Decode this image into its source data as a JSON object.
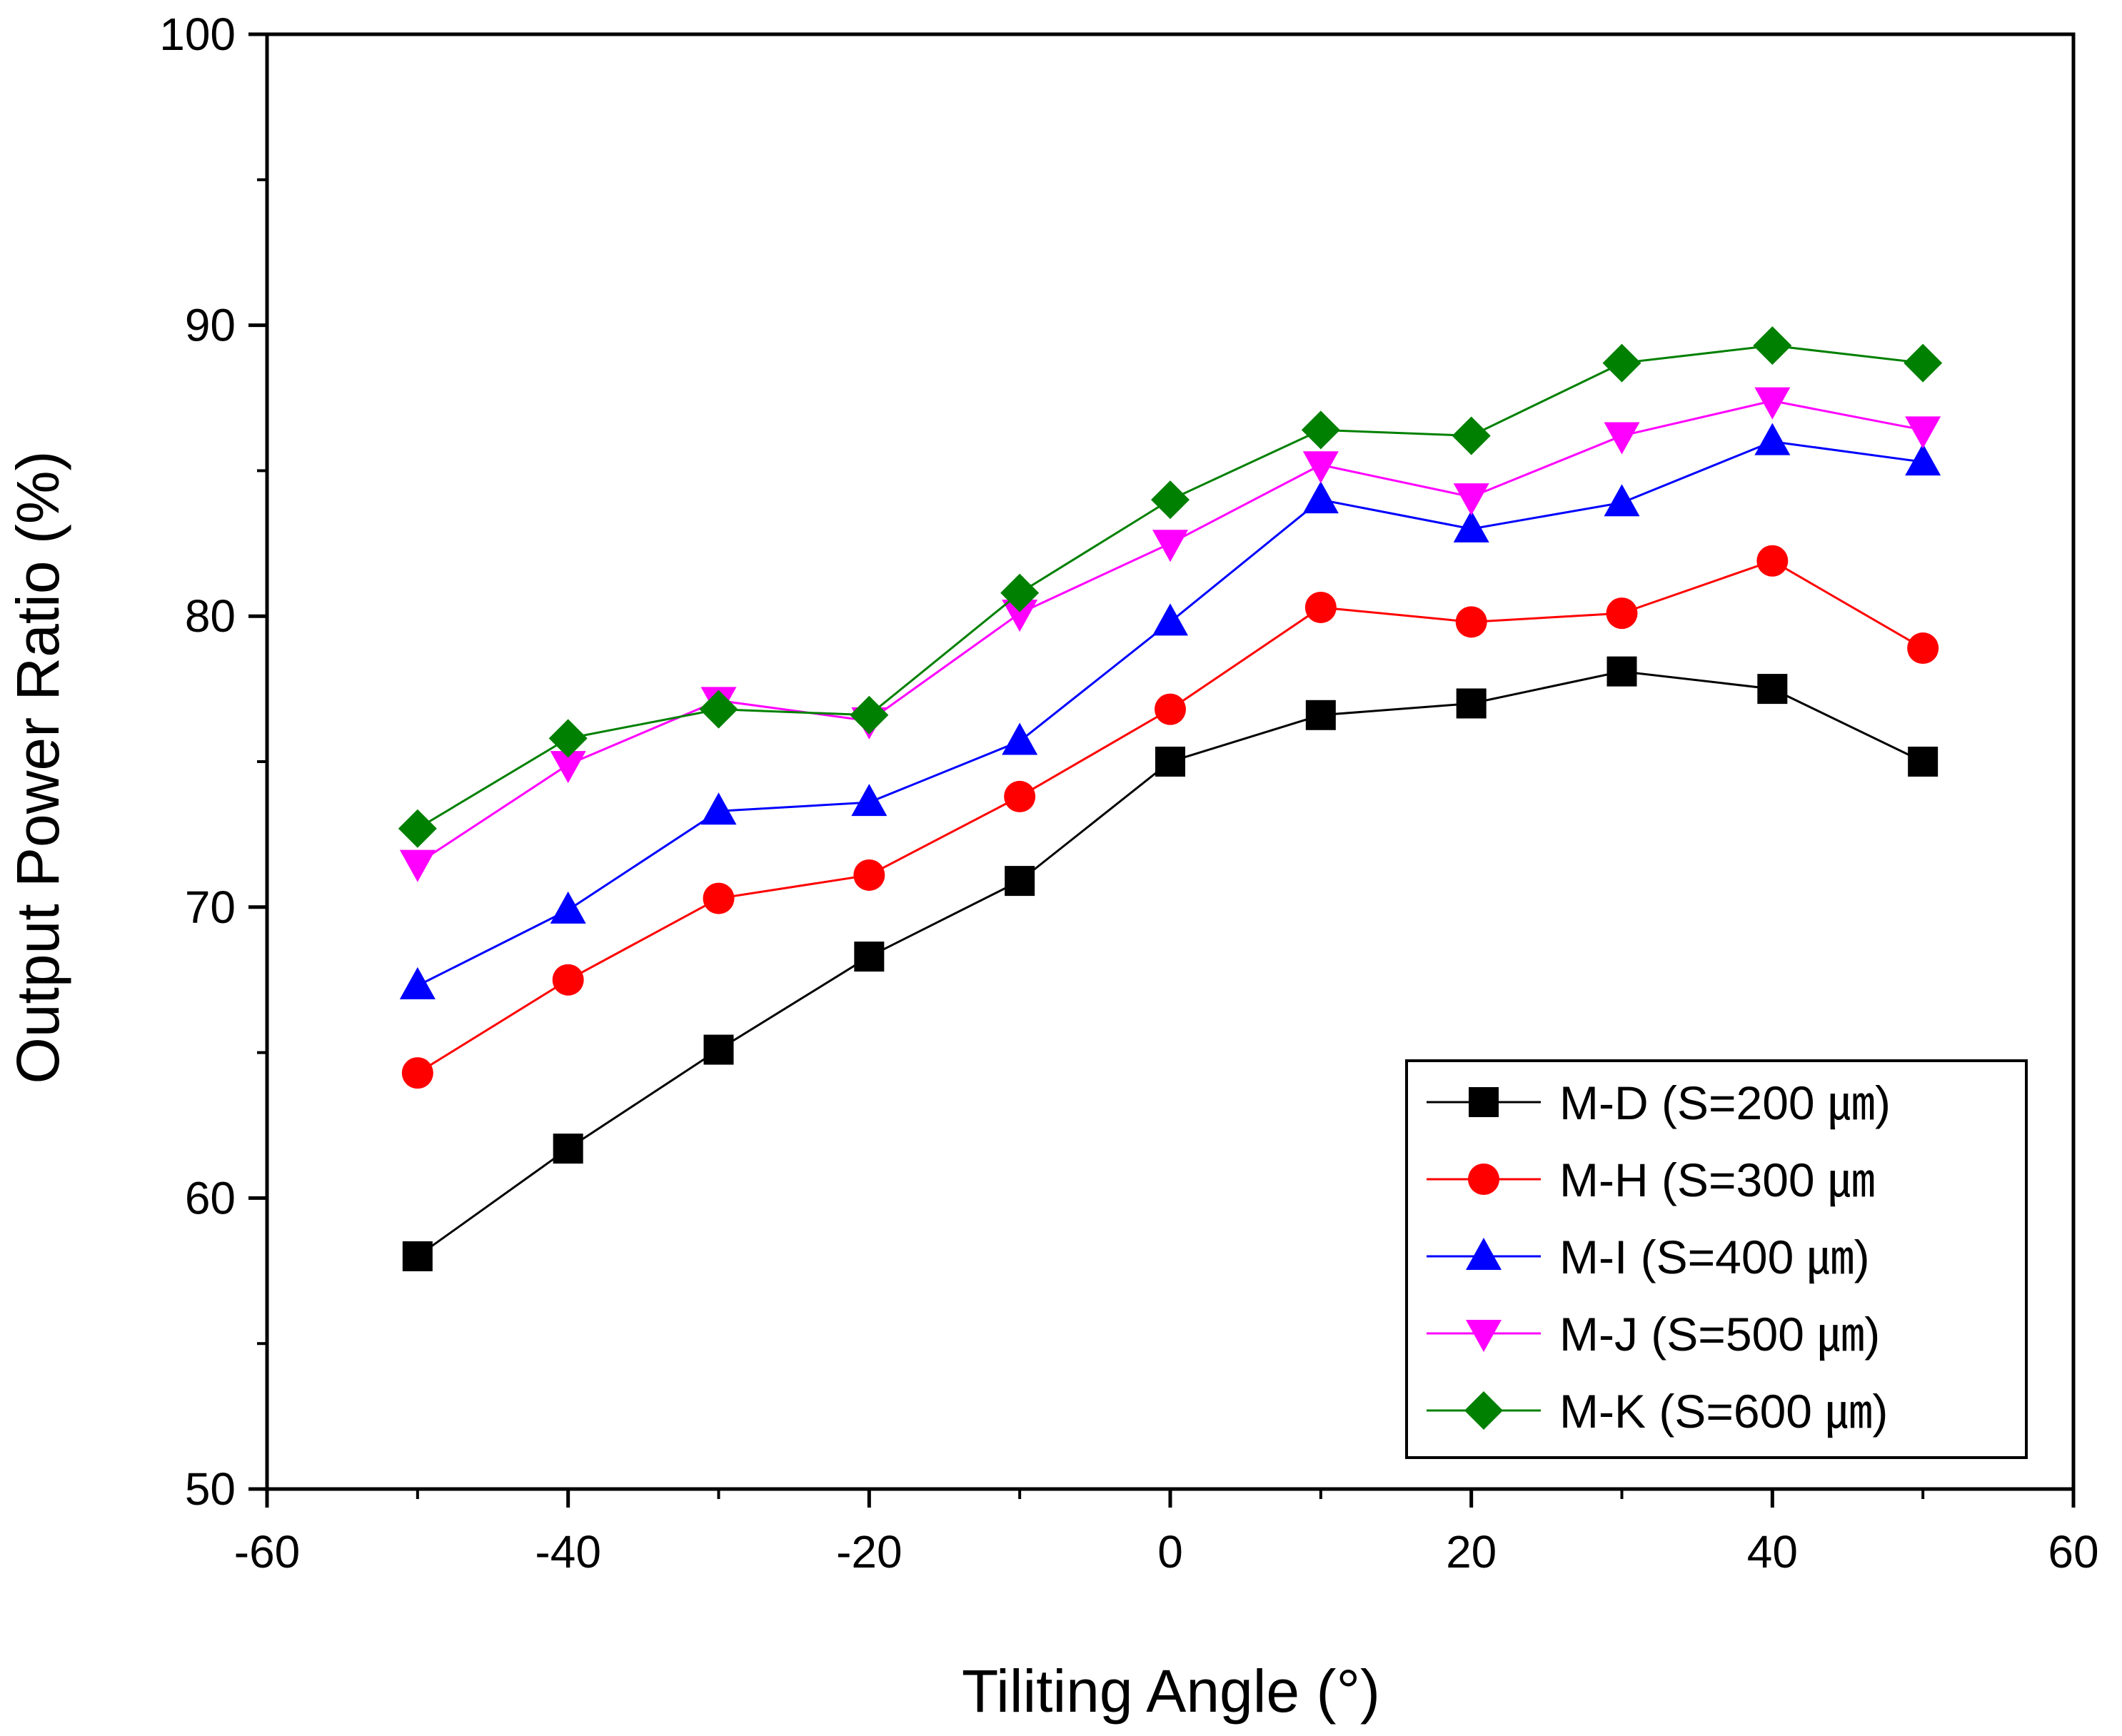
{
  "chart_data": {
    "type": "line",
    "xlabel": "Tiliting Angle (°)",
    "ylabel": "Output Power Ratio (%)",
    "xlim": [
      -60,
      60
    ],
    "ylim": [
      50,
      100
    ],
    "x_ticks": [
      -60,
      -40,
      -20,
      0,
      20,
      40,
      60
    ],
    "y_ticks": [
      50,
      60,
      70,
      80,
      90,
      100
    ],
    "x_tick_labels": [
      "-60",
      "-40",
      "-20",
      "0",
      "20",
      "40",
      "60"
    ],
    "y_tick_labels": [
      "50",
      "60",
      "70",
      "80",
      "90",
      "100"
    ],
    "grid": false,
    "legend_position": "bottom-right",
    "x": [
      -50,
      -40,
      -30,
      -20,
      -10,
      0,
      10,
      20,
      30,
      40,
      50
    ],
    "series": [
      {
        "name": "M-D (S=200 ㎛)",
        "color": "#000000",
        "marker": "square",
        "values": [
          58.0,
          61.7,
          65.1,
          68.3,
          70.9,
          75.0,
          76.6,
          77.0,
          78.1,
          77.5,
          75.0
        ]
      },
      {
        "name": "M-H (S=300 ㎛",
        "color": "#ff0000",
        "marker": "circle",
        "values": [
          64.3,
          67.5,
          70.3,
          71.1,
          73.8,
          76.8,
          80.3,
          79.8,
          80.1,
          81.9,
          78.9
        ]
      },
      {
        "name": "M-I (S=400 ㎛)",
        "color": "#0000ff",
        "marker": "triangle-up",
        "values": [
          67.3,
          69.9,
          73.3,
          73.6,
          75.7,
          79.8,
          84.0,
          83.0,
          83.9,
          86.0,
          85.3
        ]
      },
      {
        "name": "M-J (S=500 ㎛)",
        "color": "#ff00ff",
        "marker": "triangle-down",
        "values": [
          71.5,
          74.9,
          77.1,
          76.4,
          80.1,
          82.5,
          85.2,
          84.1,
          86.2,
          87.4,
          86.4
        ]
      },
      {
        "name": "M-K (S=600 ㎛)",
        "color": "#008000",
        "marker": "diamond",
        "values": [
          72.7,
          75.8,
          76.8,
          76.6,
          80.8,
          84.0,
          86.4,
          86.2,
          88.7,
          89.3,
          88.7
        ]
      }
    ]
  }
}
